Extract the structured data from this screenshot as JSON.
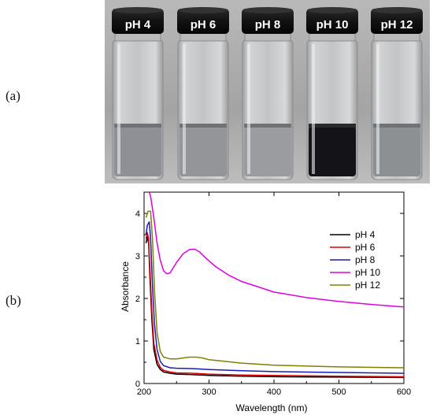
{
  "figure": {
    "panel_a_label": "(a)",
    "panel_b_label": "(b)"
  },
  "photo": {
    "vial_labels": [
      "pH 4",
      "pH 6",
      "pH 8",
      "pH 10",
      "pH 12"
    ],
    "background_color": "#a6a6a6",
    "cap_color": "#141414",
    "liquid_colors": [
      "#8e9096",
      "#939599",
      "#9a9ca0",
      "#141418",
      "#8d9092"
    ]
  },
  "chart_data": {
    "type": "line",
    "xlabel": "Wavelength (nm)",
    "ylabel": "Absorbance",
    "xlim": [
      200,
      600
    ],
    "ylim": [
      0,
      4.5
    ],
    "xticks": [
      200,
      300,
      400,
      500,
      600
    ],
    "yticks": [
      0,
      1,
      2,
      3,
      4
    ],
    "legend_position": "top-right",
    "series": [
      {
        "name": "pH 4",
        "color": "#000000",
        "x": [
          203,
          205,
          207,
          209,
          212,
          215,
          220,
          225,
          230,
          240,
          250,
          275,
          300,
          350,
          400,
          500,
          600
        ],
        "y": [
          3.3,
          3.45,
          3.3,
          2.5,
          1.5,
          0.8,
          0.45,
          0.33,
          0.27,
          0.24,
          0.22,
          0.21,
          0.19,
          0.17,
          0.16,
          0.15,
          0.14
        ]
      },
      {
        "name": "pH 6",
        "color": "#e00000",
        "x": [
          203,
          205,
          207,
          209,
          212,
          215,
          220,
          225,
          230,
          240,
          250,
          275,
          300,
          350,
          400,
          500,
          600
        ],
        "y": [
          3.4,
          3.55,
          3.4,
          2.7,
          1.7,
          0.95,
          0.55,
          0.38,
          0.31,
          0.27,
          0.25,
          0.24,
          0.22,
          0.2,
          0.19,
          0.17,
          0.16
        ]
      },
      {
        "name": "pH 8",
        "color": "#1a1ab8",
        "x": [
          203,
          205,
          208,
          210,
          213,
          216,
          220,
          225,
          230,
          240,
          250,
          275,
          300,
          350,
          400,
          500,
          600
        ],
        "y": [
          3.5,
          3.72,
          3.8,
          3.4,
          2.3,
          1.4,
          0.8,
          0.52,
          0.42,
          0.37,
          0.36,
          0.35,
          0.33,
          0.3,
          0.28,
          0.26,
          0.24
        ]
      },
      {
        "name": "pH 10",
        "color": "#e000e0",
        "x": [
          206,
          210,
          215,
          220,
          225,
          230,
          235,
          240,
          250,
          260,
          270,
          278,
          285,
          295,
          310,
          330,
          350,
          400,
          450,
          500,
          550,
          600
        ],
        "y": [
          4.6,
          4.4,
          3.9,
          3.3,
          2.9,
          2.65,
          2.58,
          2.6,
          2.85,
          3.05,
          3.15,
          3.16,
          3.1,
          2.95,
          2.75,
          2.55,
          2.4,
          2.15,
          2.02,
          1.93,
          1.86,
          1.8
        ]
      },
      {
        "name": "pH 12",
        "color": "#808000",
        "x": [
          203,
          206,
          210,
          213,
          216,
          220,
          225,
          230,
          240,
          250,
          260,
          270,
          280,
          290,
          300,
          350,
          400,
          500,
          600
        ],
        "y": [
          3.9,
          4.05,
          4.05,
          3.4,
          2.2,
          1.2,
          0.75,
          0.62,
          0.58,
          0.58,
          0.6,
          0.62,
          0.62,
          0.6,
          0.56,
          0.48,
          0.43,
          0.39,
          0.37
        ]
      }
    ]
  }
}
